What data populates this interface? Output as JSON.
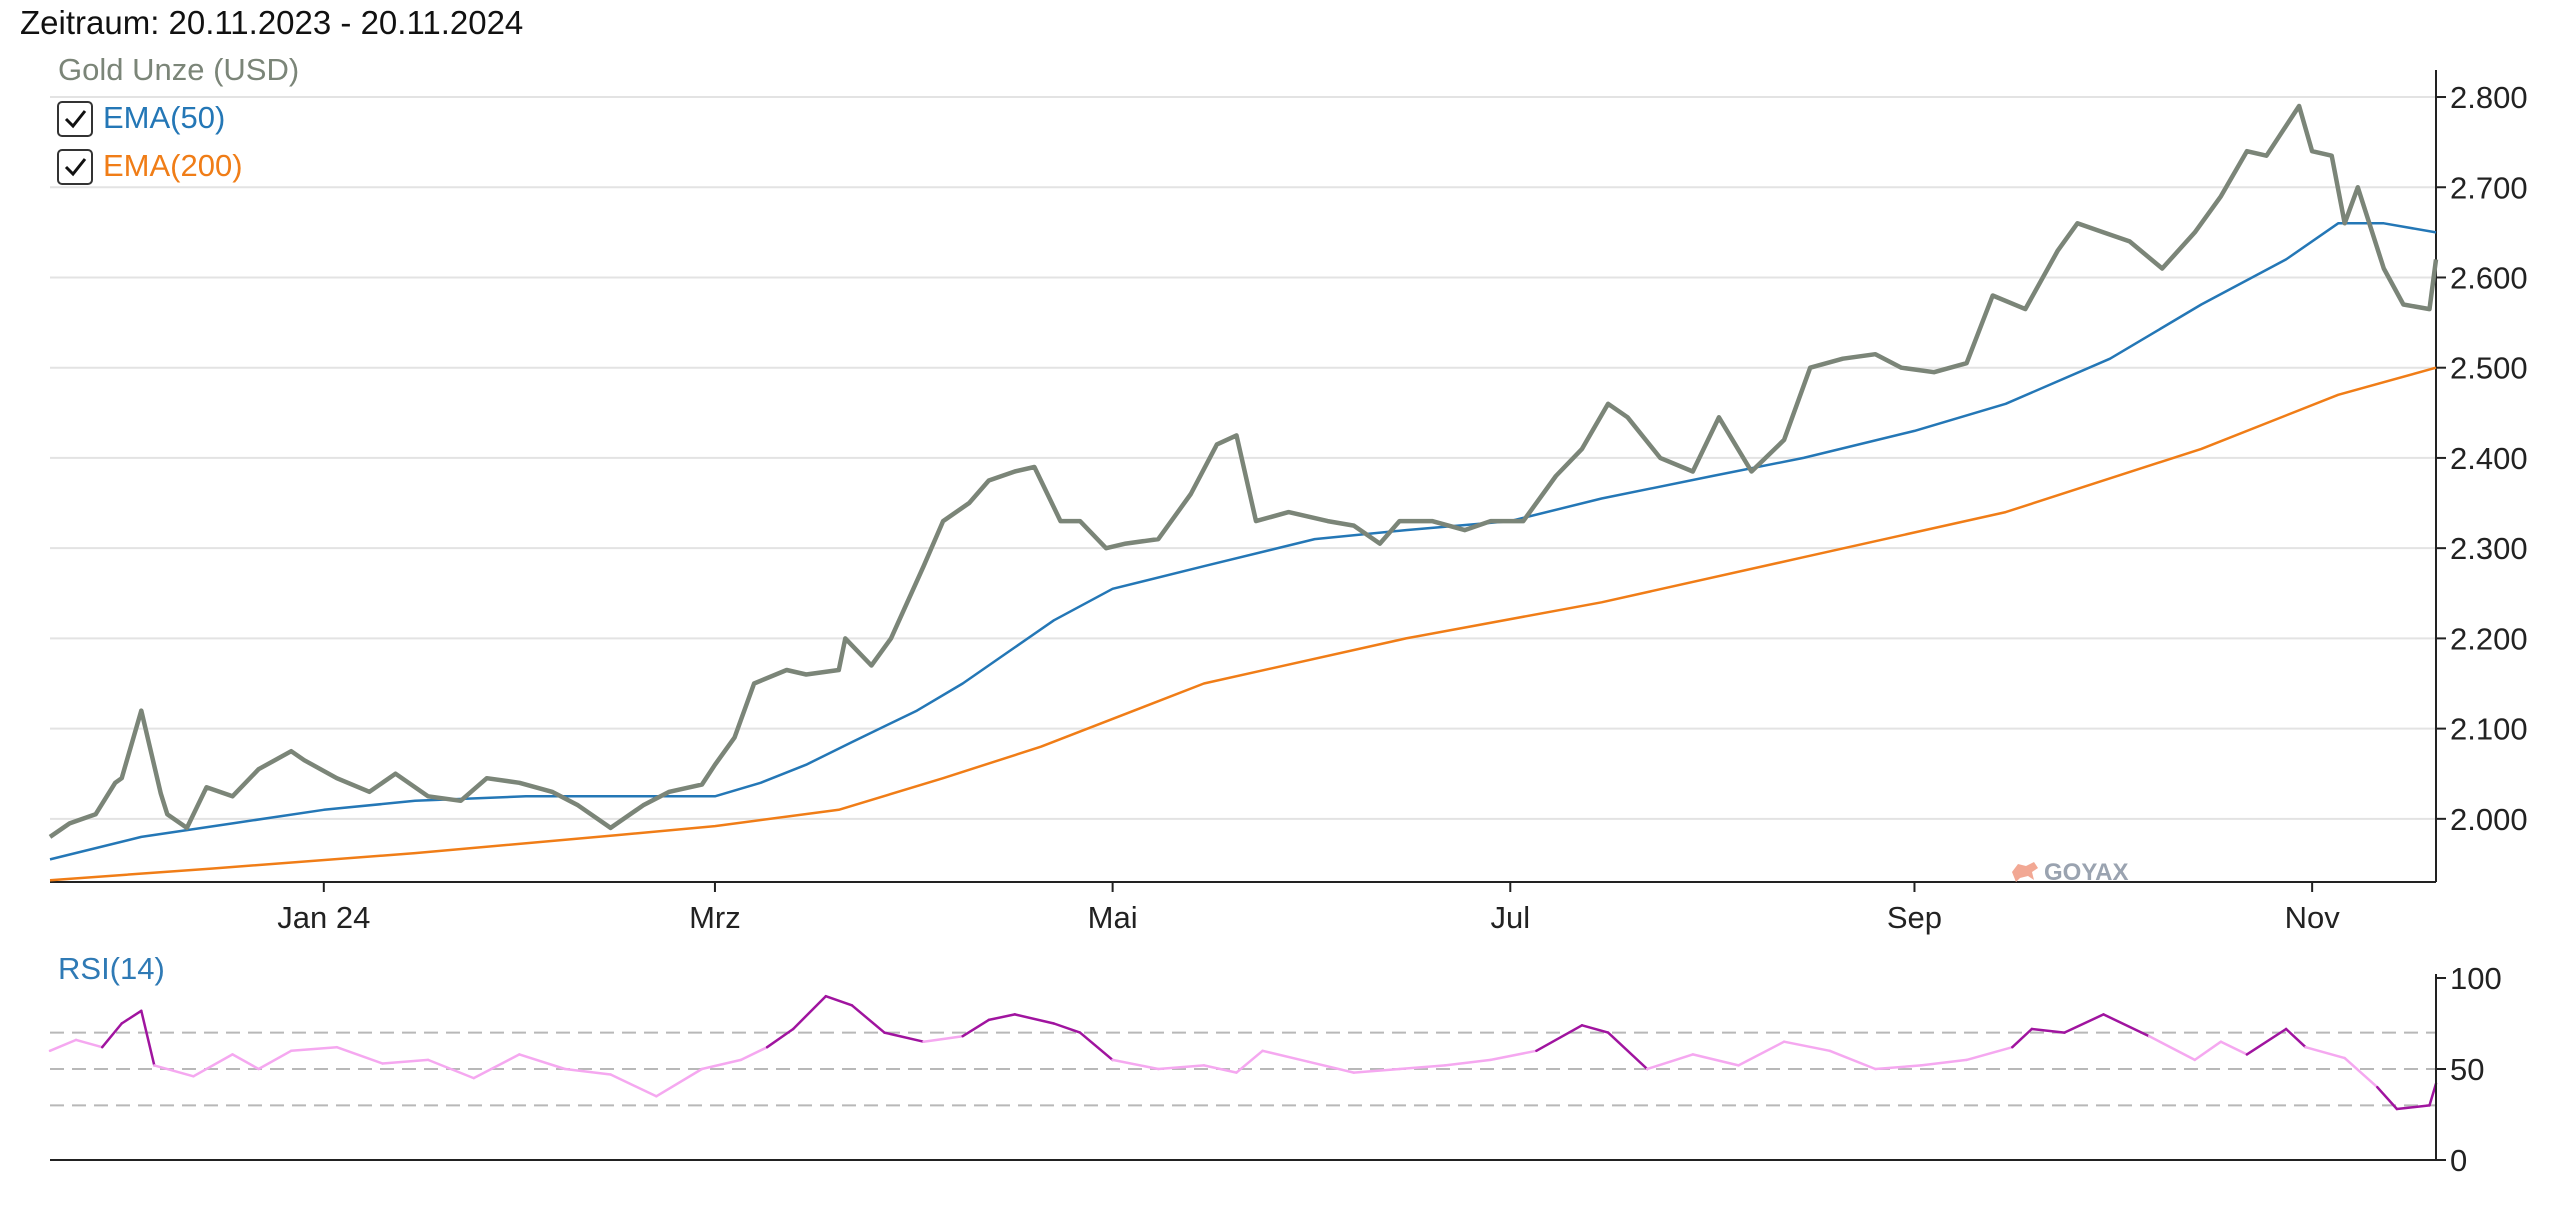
{
  "header": {
    "period": "Zeitraum: 20.11.2023 - 20.11.2024"
  },
  "colors": {
    "price": "#7b8578",
    "ema50": "#2477b6",
    "ema200": "#f07d17",
    "rsi": "#f5a8f0",
    "rsi_extreme": "#a0149f",
    "grid": "#e3e3e3",
    "axis": "#222222"
  },
  "legend": {
    "price": "Gold Unze (USD)",
    "ema50": "EMA(50)",
    "ema200": "EMA(200)",
    "rsi": "RSI(14)"
  },
  "watermark": "GOYAX",
  "chart_data": [
    {
      "type": "line",
      "y_axis_position": "right",
      "ylim": [
        1930,
        2810
      ],
      "yticks": [
        2000,
        2100,
        2200,
        2300,
        2400,
        2500,
        2600,
        2700,
        2800
      ],
      "ytick_labels": [
        "2.000",
        "2.100",
        "2.200",
        "2.300",
        "2.400",
        "2.500",
        "2.600",
        "2.700",
        "2.800"
      ],
      "xlim": [
        "2023-11-20",
        "2024-11-20"
      ],
      "xticks": [
        "2024-01-01",
        "2024-03-01",
        "2024-05-01",
        "2024-07-01",
        "2024-09-01",
        "2024-11-01"
      ],
      "xtick_labels": [
        "Jan 24",
        "Mrz",
        "Mai",
        "Jul",
        "Sep",
        "Nov"
      ],
      "grid": true,
      "legend_position": "top-left",
      "series": [
        {
          "name": "Gold Unze (USD)",
          "x": [
            "2023-11-20",
            "2023-11-23",
            "2023-11-27",
            "2023-11-30",
            "2023-12-01",
            "2023-12-04",
            "2023-12-07",
            "2023-12-08",
            "2023-12-11",
            "2023-12-14",
            "2023-12-18",
            "2023-12-22",
            "2023-12-27",
            "2023-12-29",
            "2024-01-03",
            "2024-01-08",
            "2024-01-12",
            "2024-01-17",
            "2024-01-22",
            "2024-01-26",
            "2024-01-31",
            "2024-02-05",
            "2024-02-09",
            "2024-02-14",
            "2024-02-19",
            "2024-02-23",
            "2024-02-28",
            "2024-03-01",
            "2024-03-04",
            "2024-03-07",
            "2024-03-12",
            "2024-03-15",
            "2024-03-20",
            "2024-03-21",
            "2024-03-25",
            "2024-03-28",
            "2024-04-02",
            "2024-04-05",
            "2024-04-09",
            "2024-04-12",
            "2024-04-16",
            "2024-04-19",
            "2024-04-23",
            "2024-04-26",
            "2024-04-30",
            "2024-05-03",
            "2024-05-08",
            "2024-05-13",
            "2024-05-17",
            "2024-05-20",
            "2024-05-23",
            "2024-05-28",
            "2024-06-03",
            "2024-06-07",
            "2024-06-11",
            "2024-06-14",
            "2024-06-19",
            "2024-06-24",
            "2024-06-28",
            "2024-07-03",
            "2024-07-08",
            "2024-07-12",
            "2024-07-16",
            "2024-07-19",
            "2024-07-24",
            "2024-07-29",
            "2024-08-02",
            "2024-08-07",
            "2024-08-12",
            "2024-08-16",
            "2024-08-21",
            "2024-08-26",
            "2024-08-30",
            "2024-09-04",
            "2024-09-09",
            "2024-09-13",
            "2024-09-18",
            "2024-09-23",
            "2024-09-26",
            "2024-09-30",
            "2024-10-04",
            "2024-10-09",
            "2024-10-14",
            "2024-10-18",
            "2024-10-22",
            "2024-10-25",
            "2024-10-30",
            "2024-11-01",
            "2024-11-04",
            "2024-11-06",
            "2024-11-08",
            "2024-11-12",
            "2024-11-15",
            "2024-11-19",
            "2024-11-20"
          ],
          "y": [
            1980,
            1995,
            2005,
            2040,
            2045,
            2120,
            2028,
            2005,
            1990,
            2035,
            2025,
            2055,
            2075,
            2065,
            2045,
            2030,
            2050,
            2025,
            2020,
            2045,
            2040,
            2030,
            2015,
            1990,
            2015,
            2030,
            2038,
            2060,
            2090,
            2150,
            2165,
            2160,
            2165,
            2200,
            2170,
            2200,
            2280,
            2330,
            2350,
            2375,
            2385,
            2390,
            2330,
            2330,
            2300,
            2305,
            2310,
            2360,
            2415,
            2425,
            2330,
            2340,
            2330,
            2325,
            2305,
            2330,
            2330,
            2320,
            2330,
            2330,
            2380,
            2410,
            2460,
            2445,
            2400,
            2385,
            2445,
            2385,
            2420,
            2500,
            2510,
            2515,
            2500,
            2495,
            2505,
            2580,
            2565,
            2630,
            2660,
            2650,
            2640,
            2610,
            2650,
            2690,
            2740,
            2735,
            2790,
            2740,
            2735,
            2660,
            2700,
            2610,
            2570,
            2565,
            2620
          ]
        },
        {
          "name": "EMA(50)",
          "x": [
            "2023-11-20",
            "2023-12-04",
            "2023-12-18",
            "2024-01-01",
            "2024-01-15",
            "2024-02-01",
            "2024-02-15",
            "2024-03-01",
            "2024-03-08",
            "2024-03-15",
            "2024-03-22",
            "2024-04-01",
            "2024-04-08",
            "2024-04-15",
            "2024-04-22",
            "2024-05-01",
            "2024-05-15",
            "2024-06-01",
            "2024-06-15",
            "2024-07-01",
            "2024-07-15",
            "2024-08-01",
            "2024-08-15",
            "2024-09-01",
            "2024-09-15",
            "2024-10-01",
            "2024-10-15",
            "2024-10-28",
            "2024-11-05",
            "2024-11-12",
            "2024-11-20"
          ],
          "y": [
            1955,
            1980,
            1995,
            2010,
            2020,
            2025,
            2025,
            2025,
            2040,
            2060,
            2085,
            2120,
            2150,
            2185,
            2220,
            2255,
            2280,
            2310,
            2320,
            2330,
            2355,
            2380,
            2400,
            2430,
            2460,
            2510,
            2570,
            2620,
            2660,
            2660,
            2650
          ]
        },
        {
          "name": "EMA(200)",
          "x": [
            "2023-11-20",
            "2023-12-15",
            "2024-01-15",
            "2024-02-15",
            "2024-03-01",
            "2024-03-20",
            "2024-04-05",
            "2024-04-20",
            "2024-05-15",
            "2024-06-15",
            "2024-07-15",
            "2024-08-15",
            "2024-09-15",
            "2024-10-15",
            "2024-11-05",
            "2024-11-20"
          ],
          "y": [
            1932,
            1945,
            1962,
            1982,
            1992,
            2010,
            2045,
            2080,
            2150,
            2200,
            2240,
            2290,
            2340,
            2410,
            2470,
            2500
          ]
        }
      ]
    },
    {
      "type": "line",
      "title": "RSI(14)",
      "y_axis_position": "right",
      "ylim": [
        0,
        100
      ],
      "yticks": [
        0,
        50,
        100
      ],
      "ytick_labels": [
        "0",
        "50",
        "100"
      ],
      "reference_lines": [
        30,
        50,
        70
      ],
      "xlim": [
        "2023-11-20",
        "2024-11-20"
      ],
      "series": [
        {
          "name": "RSI(14)",
          "x": [
            "2023-11-20",
            "2023-11-24",
            "2023-11-28",
            "2023-12-01",
            "2023-12-04",
            "2023-12-06",
            "2023-12-12",
            "2023-12-18",
            "2023-12-22",
            "2023-12-27",
            "2024-01-03",
            "2024-01-10",
            "2024-01-17",
            "2024-01-24",
            "2024-01-31",
            "2024-02-07",
            "2024-02-14",
            "2024-02-21",
            "2024-02-28",
            "2024-03-05",
            "2024-03-09",
            "2024-03-13",
            "2024-03-18",
            "2024-03-22",
            "2024-03-27",
            "2024-04-02",
            "2024-04-08",
            "2024-04-12",
            "2024-04-16",
            "2024-04-22",
            "2024-04-26",
            "2024-05-01",
            "2024-05-08",
            "2024-05-15",
            "2024-05-20",
            "2024-05-24",
            "2024-05-31",
            "2024-06-07",
            "2024-06-14",
            "2024-06-21",
            "2024-06-28",
            "2024-07-05",
            "2024-07-12",
            "2024-07-16",
            "2024-07-22",
            "2024-07-29",
            "2024-08-05",
            "2024-08-12",
            "2024-08-19",
            "2024-08-26",
            "2024-09-02",
            "2024-09-09",
            "2024-09-16",
            "2024-09-19",
            "2024-09-24",
            "2024-09-30",
            "2024-10-07",
            "2024-10-14",
            "2024-10-18",
            "2024-10-22",
            "2024-10-28",
            "2024-10-31",
            "2024-11-06",
            "2024-11-11",
            "2024-11-14",
            "2024-11-19",
            "2024-11-20"
          ],
          "y": [
            60,
            66,
            62,
            75,
            82,
            52,
            46,
            58,
            50,
            60,
            62,
            53,
            55,
            45,
            58,
            50,
            47,
            35,
            50,
            55,
            62,
            72,
            90,
            85,
            70,
            65,
            68,
            77,
            80,
            75,
            70,
            55,
            50,
            52,
            48,
            60,
            54,
            48,
            50,
            52,
            55,
            60,
            74,
            70,
            50,
            58,
            52,
            65,
            60,
            50,
            52,
            55,
            62,
            72,
            70,
            80,
            68,
            55,
            65,
            58,
            72,
            62,
            56,
            40,
            28,
            30,
            42
          ]
        }
      ]
    }
  ]
}
